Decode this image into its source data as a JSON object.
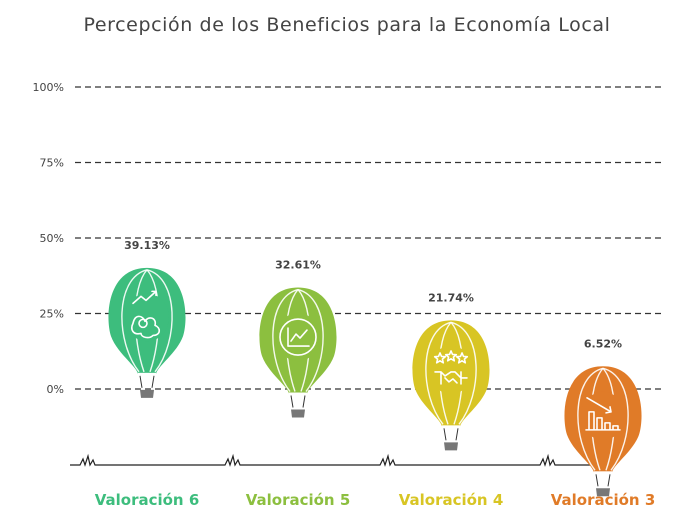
{
  "chart_data": {
    "type": "bar",
    "title": "Percepción de los Beneficios para la Economía Local",
    "xlabel": "",
    "ylabel": "",
    "categories": [
      "Valoración 6",
      "Valoración 5",
      "Valoración 4",
      "Valoración 3"
    ],
    "values": [
      39.13,
      32.61,
      21.74,
      6.52
    ],
    "data_labels": [
      "39.13%",
      "32.61%",
      "21.74%",
      "6.52%"
    ],
    "y_ticks": [
      "0%",
      "25%",
      "50%",
      "75%",
      "100%"
    ],
    "ylim": [
      0,
      100
    ],
    "grid": true,
    "legend": "none",
    "colors": [
      "#3dbd7d",
      "#8cbf3f",
      "#d8c524",
      "#e07b28"
    ],
    "icons": [
      "growth-chart-icon",
      "line-chart-icon",
      "stars-handshake-icon",
      "declining-bar-chart-icon"
    ]
  }
}
